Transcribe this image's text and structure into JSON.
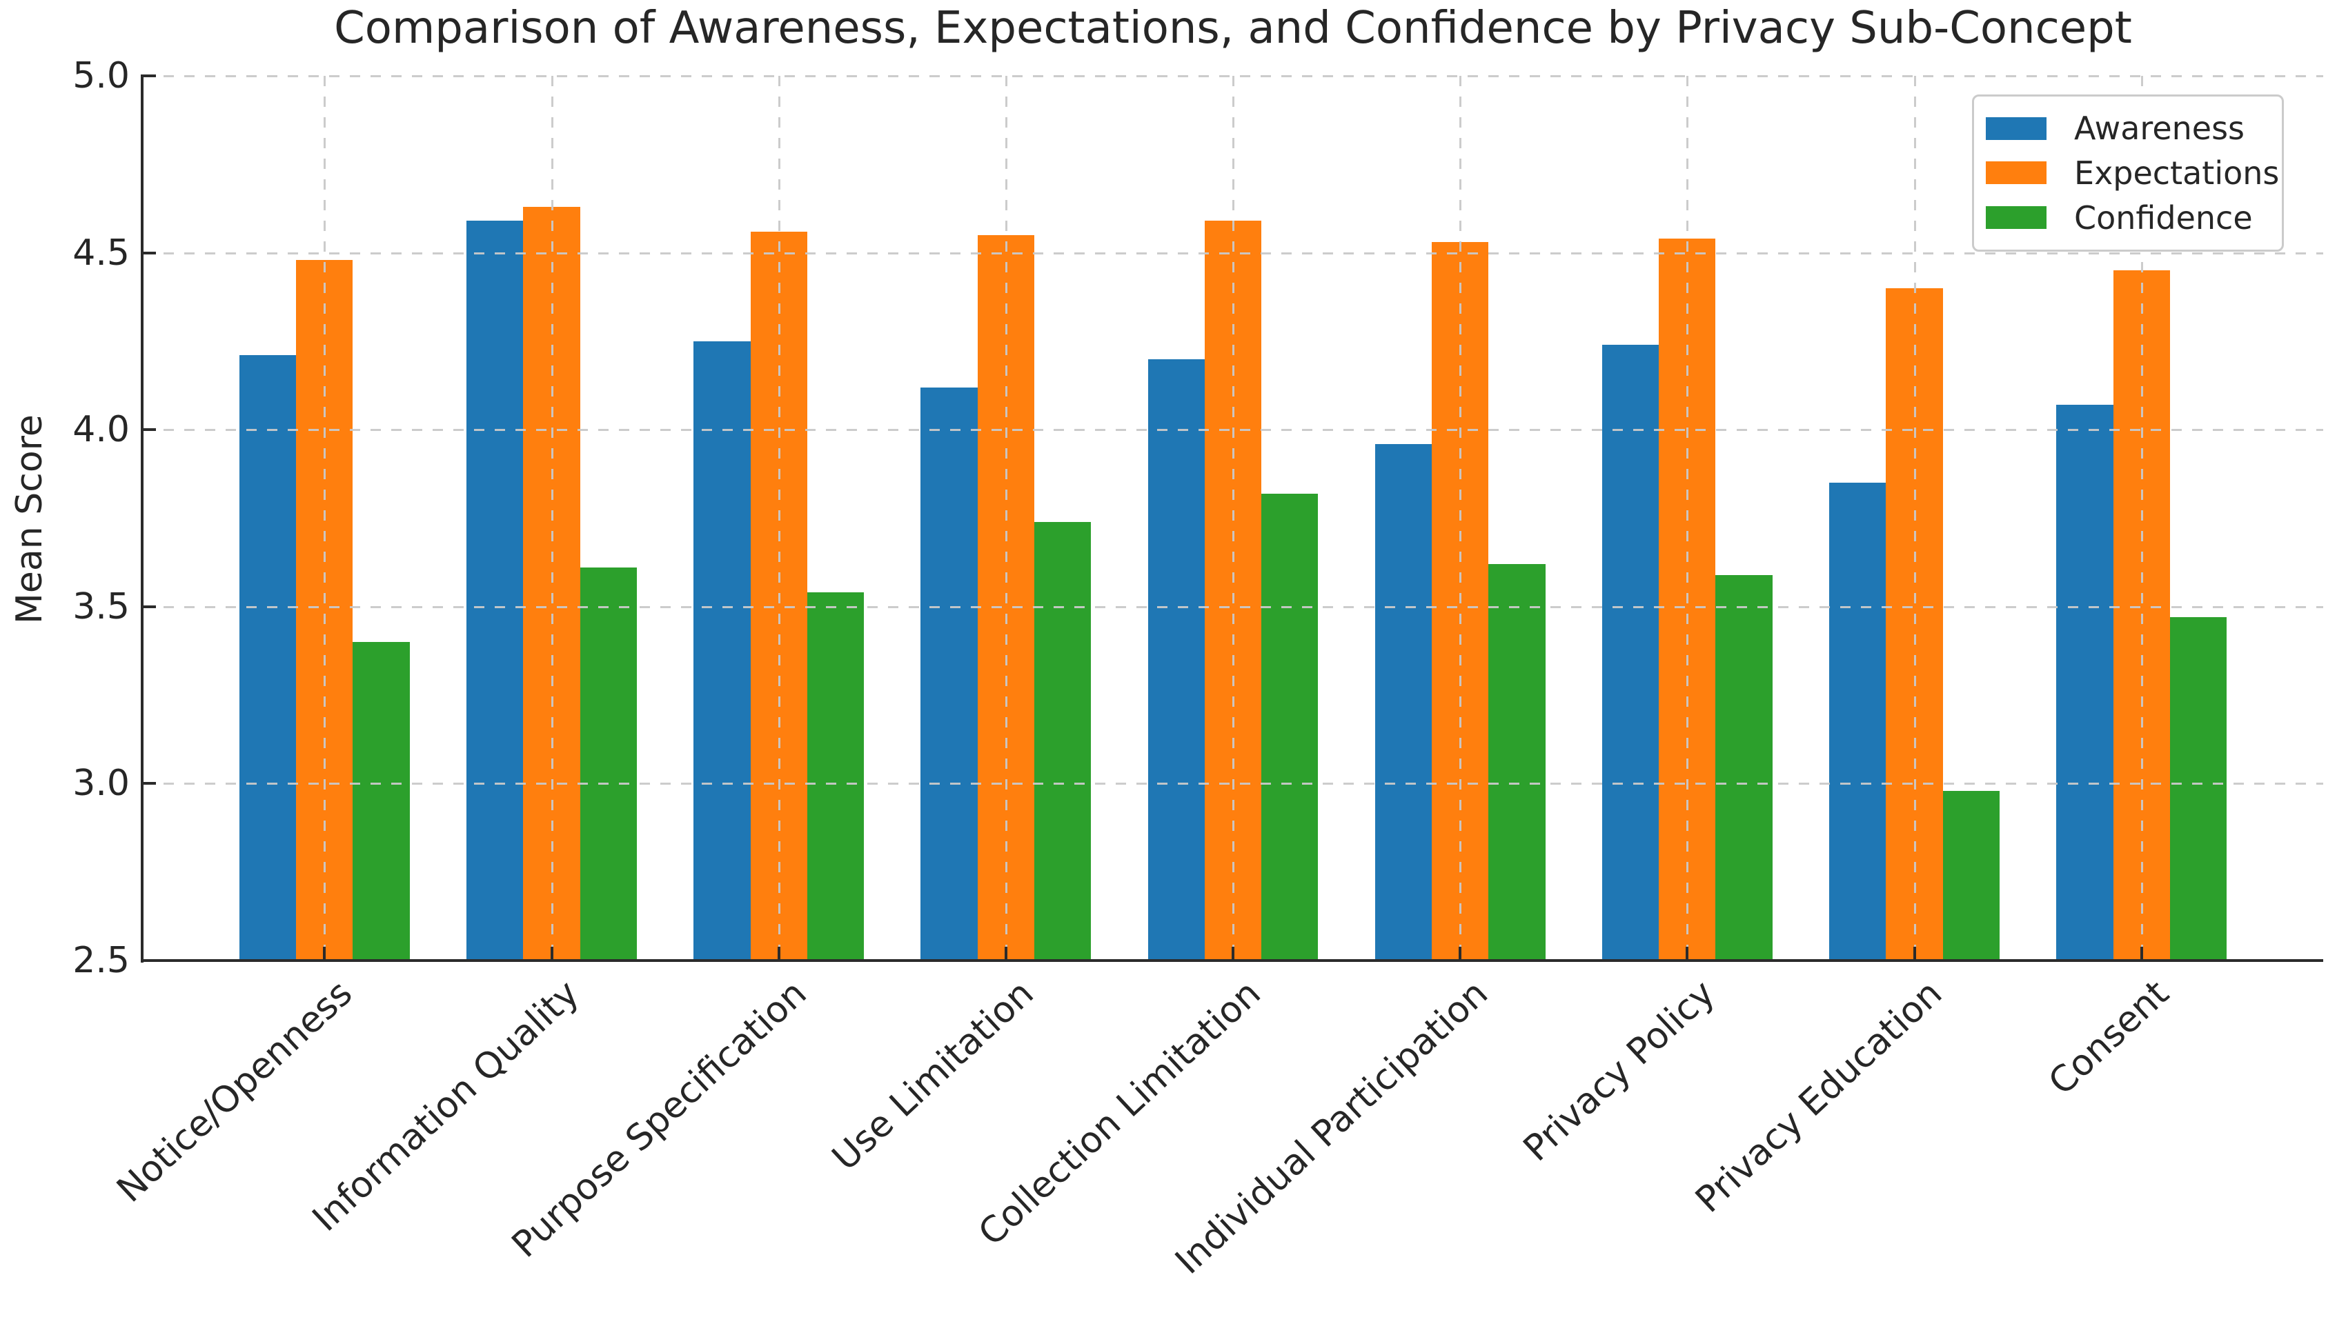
{
  "title": "Comparison of Awareness, Expectations, and Confidence by Privacy Sub-Concept",
  "chart_data": {
    "type": "bar",
    "title": "Comparison of Awareness, Expectations, and Confidence by Privacy Sub-Concept",
    "xlabel": "",
    "ylabel": "Mean Score",
    "ylim": [
      2.5,
      5.0
    ],
    "yticks": [
      2.5,
      3.0,
      3.5,
      4.0,
      4.5,
      5.0
    ],
    "grid": "dashed gridlines on both axes, drawn above bars",
    "legend_position": "upper right",
    "categories": [
      "Notice/Openness",
      "Information Quality",
      "Purpose Specification",
      "Use Limitation",
      "Collection Limitation",
      "Individual Participation",
      "Privacy Policy",
      "Privacy Education",
      "Consent"
    ],
    "series": [
      {
        "name": "Awareness",
        "color": "#1f77b4",
        "values": [
          4.21,
          4.59,
          4.25,
          4.12,
          4.2,
          3.96,
          4.24,
          3.85,
          4.07
        ]
      },
      {
        "name": "Expectations",
        "color": "#ff7f0e",
        "values": [
          4.48,
          4.63,
          4.56,
          4.55,
          4.59,
          4.53,
          4.54,
          4.4,
          4.45
        ]
      },
      {
        "name": "Confidence",
        "color": "#2ca02c",
        "values": [
          3.4,
          3.61,
          3.54,
          3.74,
          3.82,
          3.62,
          3.59,
          2.98,
          3.47
        ]
      }
    ],
    "colors": {
      "grid": "#c9c9c9",
      "spine": "#2b2b2b",
      "text": "#262626",
      "background": "#ffffff"
    }
  }
}
